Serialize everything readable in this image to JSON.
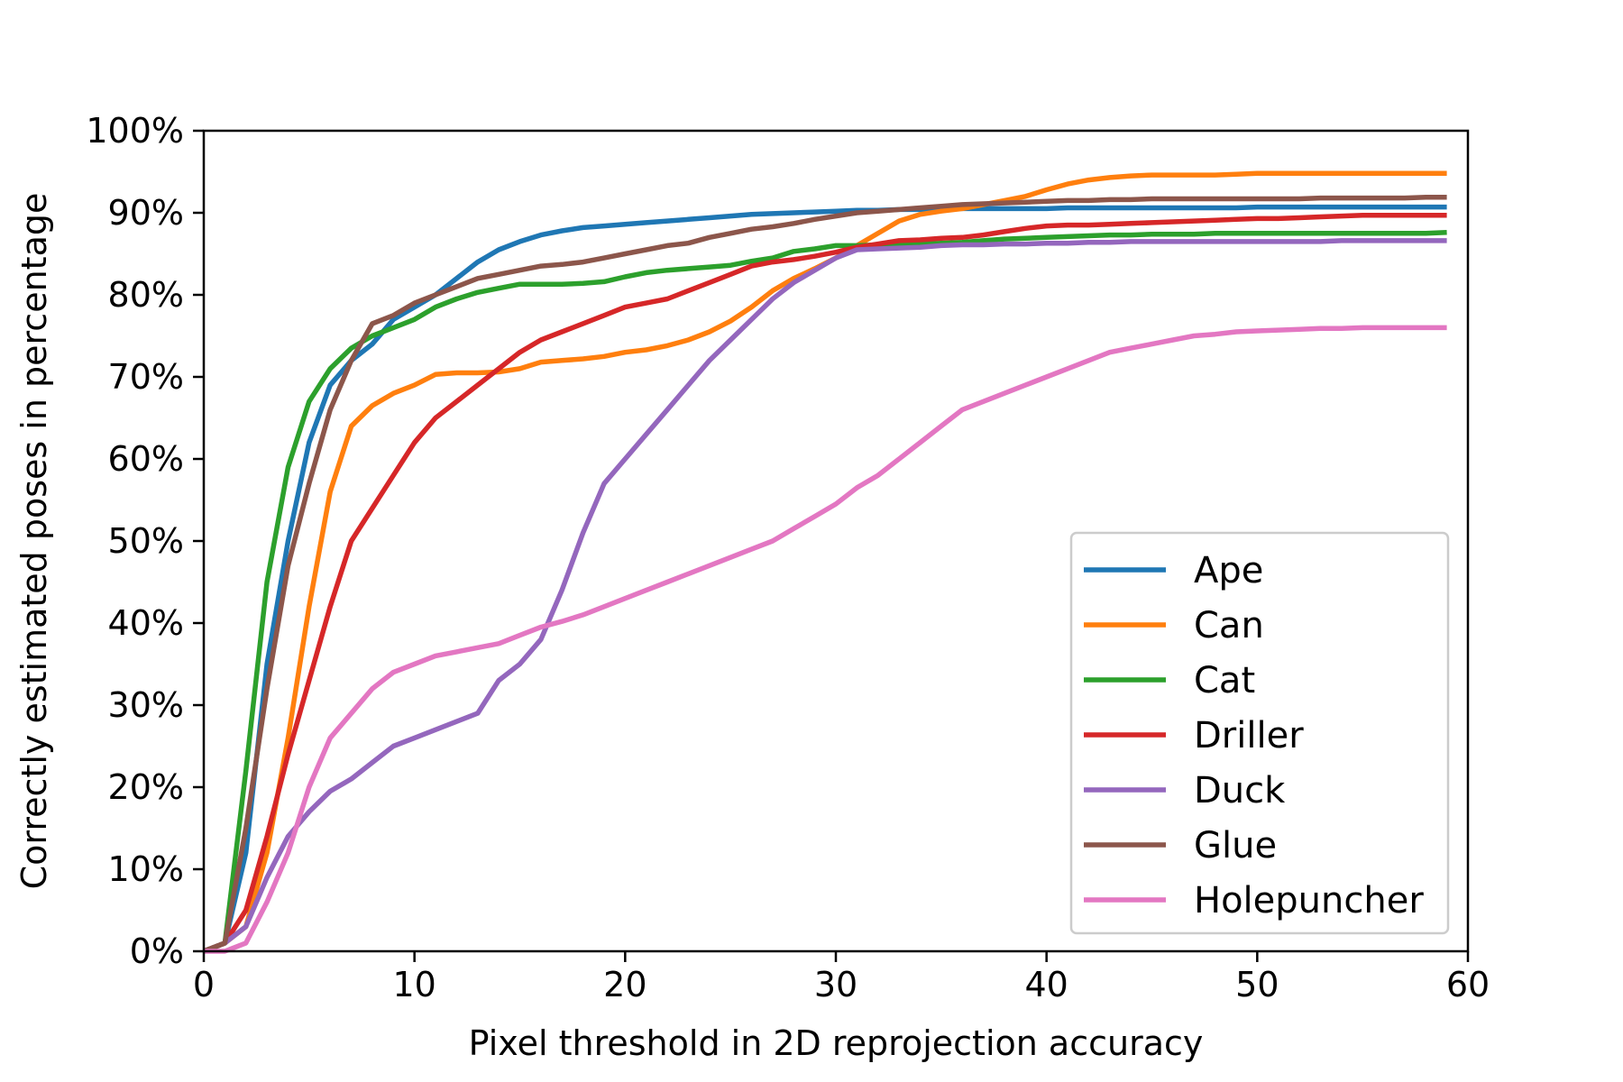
{
  "chart_data": {
    "type": "line",
    "title": "",
    "xlabel": "Pixel threshold in 2D reprojection accuracy",
    "ylabel": "Correctly estimated poses in percentage",
    "xlim": [
      0,
      60
    ],
    "ylim": [
      0,
      100
    ],
    "xticks": [
      0,
      10,
      20,
      30,
      40,
      50,
      60
    ],
    "yticks": [
      0,
      10,
      20,
      30,
      40,
      50,
      60,
      70,
      80,
      90,
      100
    ],
    "x_tick_labels": [
      "0",
      "10",
      "20",
      "30",
      "40",
      "50",
      "60"
    ],
    "y_tick_labels": [
      "0%",
      "10%",
      "20%",
      "30%",
      "40%",
      "50%",
      "60%",
      "70%",
      "80%",
      "90%",
      "100%"
    ],
    "legend_position": "lower-right",
    "x": [
      0,
      1,
      2,
      3,
      4,
      5,
      6,
      7,
      8,
      9,
      10,
      11,
      12,
      13,
      14,
      15,
      16,
      17,
      18,
      19,
      20,
      21,
      22,
      23,
      24,
      25,
      26,
      27,
      28,
      29,
      30,
      31,
      32,
      33,
      34,
      35,
      36,
      37,
      38,
      39,
      40,
      41,
      42,
      43,
      44,
      45,
      46,
      47,
      48,
      49,
      50,
      51,
      52,
      53,
      54,
      55,
      56,
      57,
      58,
      59
    ],
    "series": [
      {
        "name": "Ape",
        "color": "#1f77b4",
        "values": [
          0,
          1,
          12,
          35,
          50,
          62,
          69,
          72,
          74,
          77,
          78.5,
          80,
          82,
          84,
          85.5,
          86.5,
          87.3,
          87.8,
          88.2,
          88.4,
          88.6,
          88.8,
          89,
          89.2,
          89.4,
          89.6,
          89.8,
          89.9,
          90,
          90.1,
          90.2,
          90.3,
          90.3,
          90.4,
          90.4,
          90.5,
          90.5,
          90.5,
          90.5,
          90.5,
          90.5,
          90.6,
          90.6,
          90.6,
          90.6,
          90.6,
          90.6,
          90.6,
          90.6,
          90.6,
          90.7,
          90.7,
          90.7,
          90.7,
          90.7,
          90.7,
          90.7,
          90.7,
          90.7,
          90.7
        ]
      },
      {
        "name": "Can",
        "color": "#ff7f0e",
        "values": [
          0,
          1,
          3,
          12,
          26,
          42,
          56,
          64,
          66.5,
          68,
          69,
          70.3,
          70.5,
          70.5,
          70.6,
          71,
          71.8,
          72,
          72.2,
          72.5,
          73,
          73.3,
          73.8,
          74.5,
          75.5,
          76.8,
          78.5,
          80.5,
          82,
          83.2,
          84.5,
          86,
          87.5,
          89,
          89.8,
          90.2,
          90.5,
          91,
          91.5,
          92,
          92.8,
          93.5,
          94,
          94.3,
          94.5,
          94.6,
          94.6,
          94.6,
          94.6,
          94.7,
          94.8,
          94.8,
          94.8,
          94.8,
          94.8,
          94.8,
          94.8,
          94.8,
          94.8,
          94.8
        ]
      },
      {
        "name": "Cat",
        "color": "#2ca02c",
        "values": [
          0,
          1,
          22,
          45,
          59,
          67,
          71,
          73.5,
          75,
          76,
          77,
          78.5,
          79.5,
          80.3,
          80.8,
          81.3,
          81.3,
          81.3,
          81.4,
          81.6,
          82.2,
          82.7,
          83,
          83.2,
          83.4,
          83.6,
          84.1,
          84.5,
          85.3,
          85.6,
          86,
          86,
          86.1,
          86.1,
          86.2,
          86.3,
          86.4,
          86.6,
          86.8,
          86.9,
          87,
          87.1,
          87.2,
          87.3,
          87.3,
          87.4,
          87.4,
          87.4,
          87.5,
          87.5,
          87.5,
          87.5,
          87.5,
          87.5,
          87.5,
          87.5,
          87.5,
          87.5,
          87.5,
          87.6
        ]
      },
      {
        "name": "Driller",
        "color": "#d62728",
        "values": [
          0,
          1,
          5,
          14,
          24,
          33,
          42,
          50,
          54,
          58,
          62,
          65,
          67,
          69,
          71,
          73,
          74.5,
          75.5,
          76.5,
          77.5,
          78.5,
          79,
          79.5,
          80.5,
          81.5,
          82.5,
          83.5,
          84,
          84.3,
          84.7,
          85.2,
          85.8,
          86.2,
          86.6,
          86.7,
          86.9,
          87,
          87.3,
          87.7,
          88.1,
          88.4,
          88.5,
          88.5,
          88.6,
          88.7,
          88.8,
          88.9,
          89,
          89.1,
          89.2,
          89.3,
          89.3,
          89.4,
          89.5,
          89.6,
          89.7,
          89.7,
          89.7,
          89.7,
          89.7
        ]
      },
      {
        "name": "Duck",
        "color": "#9467bd",
        "values": [
          0,
          1,
          3,
          9,
          14,
          17,
          19.5,
          21,
          23,
          25,
          26,
          27,
          28,
          29,
          33,
          35,
          38,
          44,
          51,
          57,
          60,
          63,
          66,
          69,
          72,
          74.5,
          77,
          79.5,
          81.5,
          83,
          84.5,
          85.5,
          85.6,
          85.7,
          85.8,
          86,
          86.1,
          86.1,
          86.2,
          86.2,
          86.3,
          86.3,
          86.4,
          86.4,
          86.5,
          86.5,
          86.5,
          86.5,
          86.5,
          86.5,
          86.5,
          86.5,
          86.5,
          86.5,
          86.6,
          86.6,
          86.6,
          86.6,
          86.6,
          86.6
        ]
      },
      {
        "name": "Glue",
        "color": "#8c564b",
        "values": [
          0,
          1,
          15,
          32,
          47,
          57,
          66,
          72,
          76.5,
          77.5,
          79,
          80,
          81,
          82,
          82.5,
          83,
          83.5,
          83.7,
          84,
          84.5,
          85,
          85.5,
          86,
          86.3,
          87,
          87.5,
          88,
          88.3,
          88.7,
          89.2,
          89.6,
          90,
          90.2,
          90.4,
          90.6,
          90.8,
          91,
          91.1,
          91.2,
          91.3,
          91.4,
          91.5,
          91.5,
          91.6,
          91.6,
          91.7,
          91.7,
          91.7,
          91.7,
          91.7,
          91.7,
          91.7,
          91.7,
          91.8,
          91.8,
          91.8,
          91.8,
          91.8,
          91.9,
          91.9
        ]
      },
      {
        "name": "Holepuncher",
        "color": "#e377c2",
        "values": [
          0,
          0,
          1,
          6,
          12,
          20,
          26,
          29,
          32,
          34,
          35,
          36,
          36.5,
          37,
          37.5,
          38.5,
          39.5,
          40.2,
          41,
          42,
          43,
          44,
          45,
          46,
          47,
          48,
          49,
          50,
          51.5,
          53,
          54.5,
          56.5,
          58,
          60,
          62,
          64,
          66,
          67,
          68,
          69,
          70,
          71,
          72,
          73,
          73.5,
          74,
          74.5,
          75,
          75.2,
          75.5,
          75.6,
          75.7,
          75.8,
          75.9,
          75.9,
          76,
          76,
          76,
          76,
          76
        ]
      }
    ]
  }
}
